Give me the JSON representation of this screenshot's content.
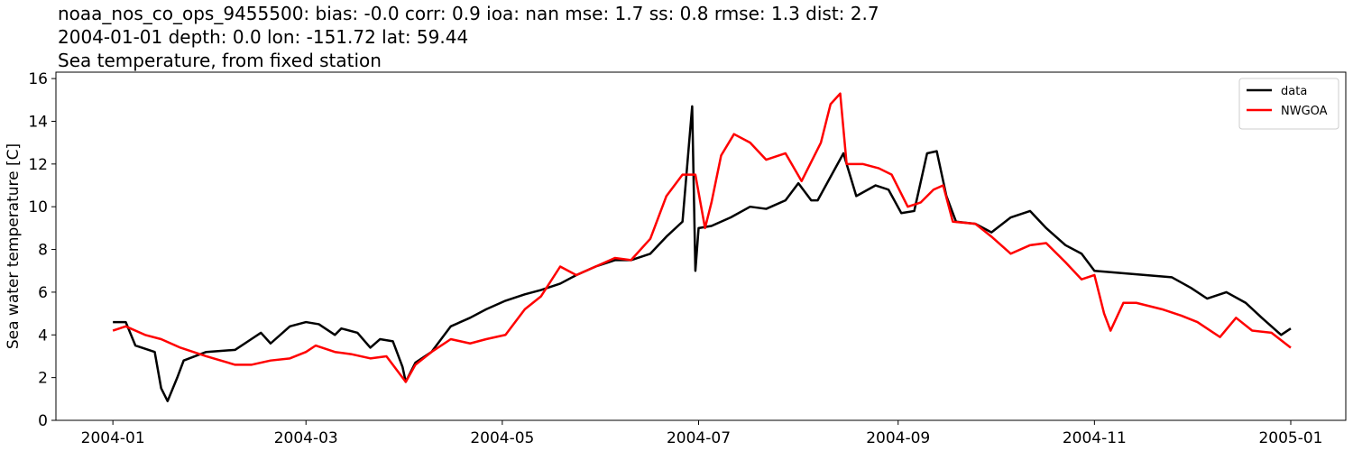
{
  "chart_data": {
    "type": "line",
    "title": [
      "noaa_nos_co_ops_9455500: bias: -0.0  corr: 0.9  ioa: nan  mse: 1.7  ss: 0.8  rmse: 1.3  dist: 2.7",
      "2004-01-01 depth: 0.0 lon: -151.72 lat: 59.44",
      "Sea temperature, from fixed station"
    ],
    "y_label": "Sea water temperature [C]",
    "xlim": [
      -17.7,
      383.1
    ],
    "ylim": [
      0,
      16.3
    ],
    "xticks": [
      {
        "value": 0,
        "label": "2004-01"
      },
      {
        "value": 60,
        "label": "2004-03"
      },
      {
        "value": 121,
        "label": "2004-05"
      },
      {
        "value": 182,
        "label": "2004-07"
      },
      {
        "value": 244,
        "label": "2004-09"
      },
      {
        "value": 305,
        "label": "2004-11"
      },
      {
        "value": 366,
        "label": "2005-01"
      }
    ],
    "yticks": [
      0,
      2,
      4,
      6,
      8,
      10,
      12,
      14,
      16
    ],
    "grid": false,
    "legend": "upper right",
    "series": [
      {
        "name": "data",
        "color": "#000000",
        "x": [
          0,
          4,
          7,
          13,
          15,
          17,
          20,
          22,
          29,
          38,
          43,
          46,
          49,
          55,
          60,
          64,
          69,
          71,
          76,
          80,
          83,
          87,
          90,
          91,
          94,
          99,
          105,
          111,
          116,
          122,
          128,
          133,
          139,
          144,
          150,
          156,
          161,
          167,
          172,
          177,
          180,
          181,
          182,
          186,
          192,
          198,
          203,
          209,
          213,
          217,
          219,
          227,
          231,
          237,
          241,
          245,
          249,
          253,
          256,
          259,
          262,
          268,
          273,
          279,
          285,
          290,
          296,
          301,
          305,
          313,
          321,
          329,
          335,
          340,
          346,
          352,
          357,
          363,
          366
        ],
        "values": [
          4.6,
          4.6,
          3.5,
          3.2,
          1.5,
          0.9,
          2.0,
          2.8,
          3.2,
          3.3,
          3.8,
          4.1,
          3.6,
          4.4,
          4.6,
          4.5,
          4.0,
          4.3,
          4.1,
          3.4,
          3.8,
          3.7,
          2.5,
          1.8,
          2.7,
          3.2,
          4.4,
          4.8,
          5.2,
          5.6,
          5.9,
          6.1,
          6.4,
          6.8,
          7.2,
          7.5,
          7.5,
          7.8,
          8.6,
          9.3,
          14.7,
          7.0,
          9.0,
          9.1,
          9.5,
          10.0,
          9.9,
          10.3,
          11.1,
          10.3,
          10.3,
          12.5,
          10.5,
          11.0,
          10.8,
          9.7,
          9.8,
          12.5,
          12.6,
          10.5,
          9.3,
          9.2,
          8.8,
          9.5,
          9.8,
          9.0,
          8.2,
          7.8,
          7.0,
          6.9,
          6.8,
          6.7,
          6.2,
          5.7,
          6.0,
          5.5,
          4.8,
          4.0,
          4.3
        ]
      },
      {
        "name": "NWGOA",
        "color": "#ff0000",
        "x": [
          0,
          4,
          10,
          15,
          21,
          29,
          38,
          43,
          49,
          55,
          60,
          63,
          69,
          74,
          80,
          85,
          91,
          94,
          99,
          105,
          111,
          116,
          122,
          128,
          133,
          139,
          144,
          150,
          156,
          161,
          167,
          172,
          177,
          181,
          184,
          186,
          189,
          193,
          198,
          203,
          209,
          214,
          220,
          223,
          226,
          228,
          233,
          238,
          242,
          247,
          251,
          255,
          258,
          261,
          268,
          273,
          279,
          285,
          290,
          296,
          301,
          305,
          308,
          310,
          314,
          318,
          326,
          332,
          337,
          341,
          344,
          349,
          354,
          360,
          366
        ],
        "values": [
          4.2,
          4.4,
          4.0,
          3.8,
          3.4,
          3.0,
          2.6,
          2.6,
          2.8,
          2.9,
          3.2,
          3.5,
          3.2,
          3.1,
          2.9,
          3.0,
          1.8,
          2.6,
          3.2,
          3.8,
          3.6,
          3.8,
          4.0,
          5.2,
          5.8,
          7.2,
          6.8,
          7.2,
          7.6,
          7.5,
          8.5,
          10.5,
          11.5,
          11.5,
          9.0,
          10.2,
          12.4,
          13.4,
          13.0,
          12.2,
          12.5,
          11.2,
          13.0,
          14.8,
          15.3,
          12.0,
          12.0,
          11.8,
          11.5,
          10.0,
          10.2,
          10.8,
          11.0,
          9.3,
          9.2,
          8.6,
          7.8,
          8.2,
          8.3,
          7.4,
          6.6,
          6.8,
          5.0,
          4.2,
          5.5,
          5.5,
          5.2,
          4.9,
          4.6,
          4.2,
          3.9,
          4.8,
          4.2,
          4.1,
          3.4
        ]
      }
    ]
  }
}
